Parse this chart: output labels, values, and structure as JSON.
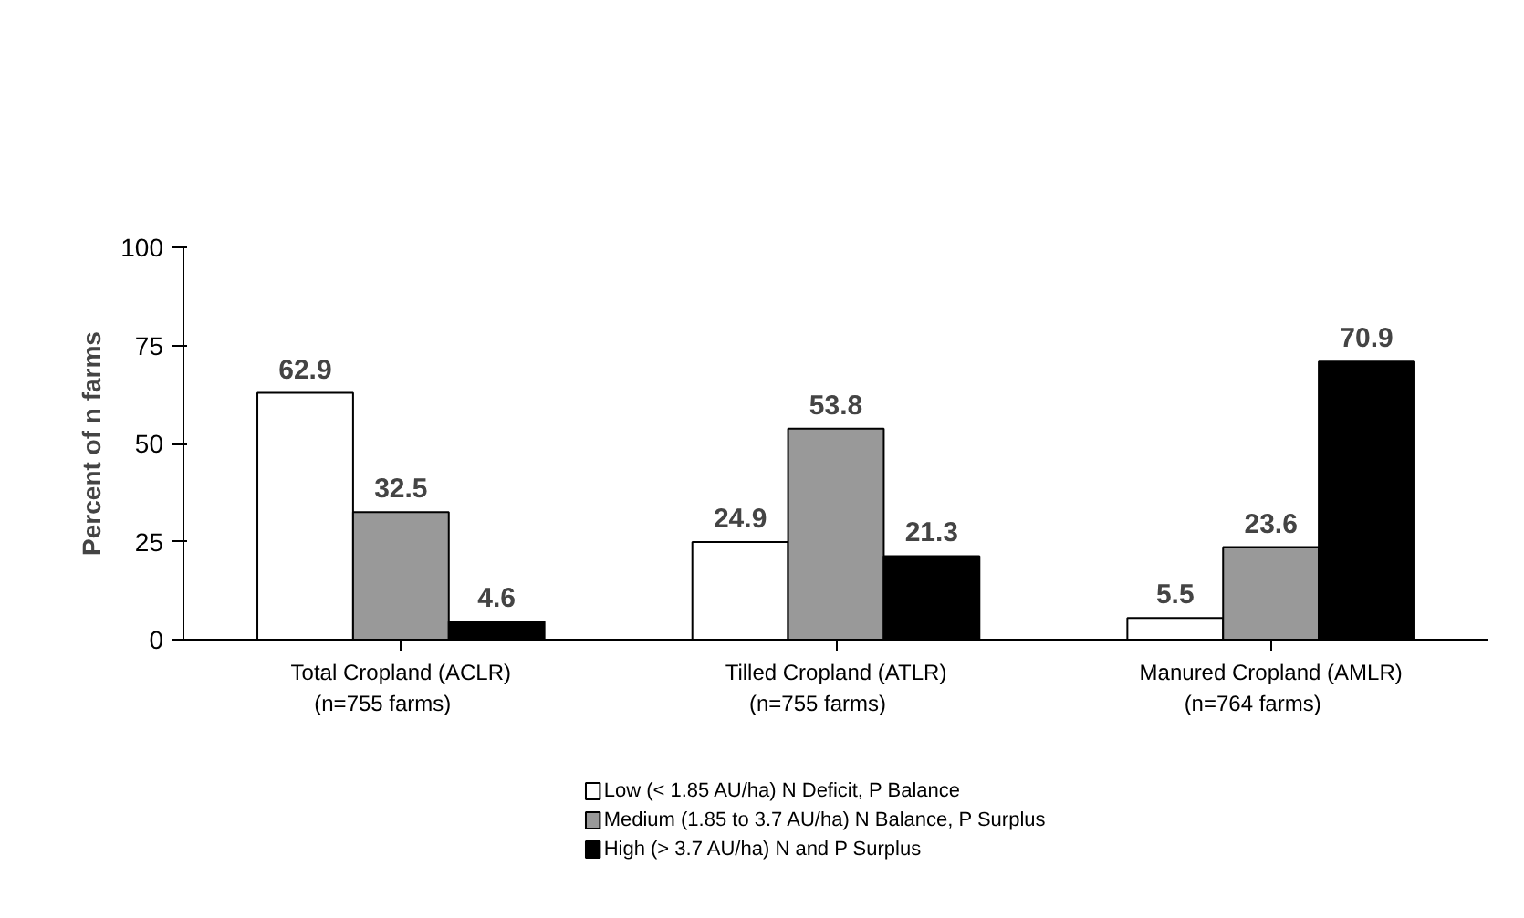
{
  "chart_data": {
    "type": "bar",
    "ylabel": "Percent of n farms",
    "categories": [
      "Total Cropland (ACLR)\n      (n=755 farms)",
      "Tilled Cropland (ATLR)\n      (n=755 farms)",
      "Manured Cropland (AMLR)\n      (n=764 farms)"
    ],
    "series": [
      {
        "name": "Low  (< 1.85 AU/ha)          N Deficit, P Balance",
        "color": "#ffffff",
        "values": [
          62.9,
          24.9,
          5.5
        ]
      },
      {
        "name": "Medium  (1.85 to 3.7 AU/ha)    N Balance, P Surplus",
        "color": "#999999",
        "values": [
          32.5,
          53.8,
          23.6
        ]
      },
      {
        "name": "High  (> 3.7 AU/ha)              N and P Surplus",
        "color": "#000000",
        "values": [
          4.6,
          21.3,
          70.9
        ]
      }
    ],
    "ylim": [
      0,
      100
    ],
    "yticks": [
      0,
      25,
      50,
      75,
      100
    ],
    "grid": false,
    "legend": "bottom",
    "data_labels": true
  }
}
